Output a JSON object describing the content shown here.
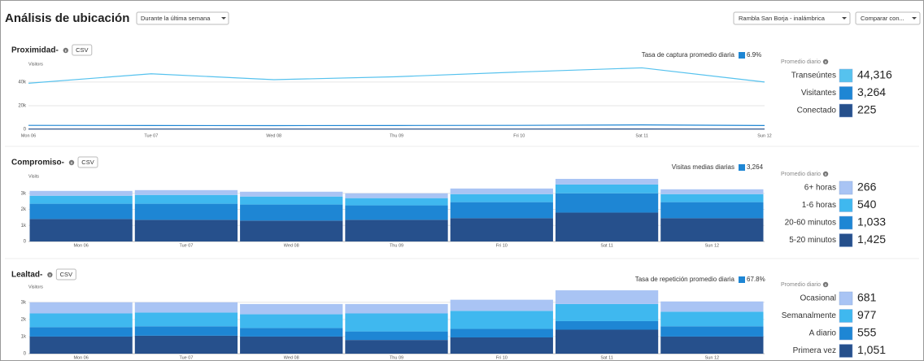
{
  "header": {
    "title": "Análisis de ubicación",
    "period": "Durante la última semana",
    "location": "Rambla San Borja - inalámbrica",
    "compare": "Comparar con..."
  },
  "chart_data": [
    {
      "type": "line",
      "title": "Proximidad-",
      "csv": "CSV",
      "metric_label": "Tasa de captura promedio diaria",
      "metric_value": "6.9%",
      "metric_color": "#1e86d4",
      "ylabel": "Visitors",
      "categories": [
        "Mon 06",
        "Tue 07",
        "Wed 08",
        "Thu 09",
        "Fri 10",
        "Sat 11",
        "Sun 12"
      ],
      "ylim": [
        0,
        53000
      ],
      "yticks": [
        0,
        {
          "value": 20000,
          "label": "20k"
        },
        {
          "value": 40000,
          "label": "40k"
        }
      ],
      "grid": true,
      "legend_title": "Promedio diario",
      "series": [
        {
          "name": "Transeúntes",
          "color": "#56c2ee",
          "average": "44,316",
          "values": [
            39000,
            47000,
            42000,
            44500,
            48500,
            52000,
            40000
          ]
        },
        {
          "name": "Visitantes",
          "color": "#1e86d4",
          "average": "3,264",
          "values": [
            3300,
            3200,
            3100,
            3200,
            3300,
            3700,
            3200
          ]
        },
        {
          "name": "Conectado",
          "color": "#26508c",
          "average": "225",
          "values": [
            230,
            220,
            210,
            220,
            230,
            250,
            220
          ]
        }
      ]
    },
    {
      "type": "stacked_bar",
      "title": "Compromiso-",
      "csv": "CSV",
      "metric_label": "Visitas medias diarias",
      "metric_value": "3,264",
      "metric_color": "#1e86d4",
      "ylabel": "Visits",
      "categories": [
        "Mon 06",
        "Tue 07",
        "Wed 08",
        "Thu 09",
        "Fri 10",
        "Sat 11",
        "Sun 12"
      ],
      "ylim": [
        0,
        3900
      ],
      "yticks": [
        0,
        {
          "value": 1000,
          "label": "1k"
        },
        {
          "value": 2000,
          "label": "2k"
        },
        {
          "value": 3000,
          "label": "3k"
        }
      ],
      "grid": true,
      "legend_title": "Promedio diario",
      "series": [
        {
          "name": "6+ horas",
          "color": "#a9c4f4",
          "average": "266",
          "values": [
            300,
            300,
            300,
            300,
            350,
            350,
            300
          ]
        },
        {
          "name": "1-6 horas",
          "color": "#3fb8ef",
          "average": "540",
          "values": [
            500,
            550,
            500,
            450,
            500,
            550,
            500
          ]
        },
        {
          "name": "20-60 minutos",
          "color": "#1e86d4",
          "average": "1,033",
          "values": [
            950,
            1000,
            1000,
            900,
            1000,
            1200,
            1000
          ]
        },
        {
          "name": "5-20 minutos",
          "color": "#26508c",
          "average": "1,425",
          "values": [
            1400,
            1350,
            1300,
            1350,
            1450,
            1800,
            1450
          ]
        }
      ]
    },
    {
      "type": "stacked_bar",
      "title": "Lealtad-",
      "csv": "CSV",
      "metric_label": "Tasa de repetición promedio diaria",
      "metric_value": "67.8%",
      "metric_color": "#1e86d4",
      "ylabel": "Visitors",
      "categories": [
        "Mon 06",
        "Tue 07",
        "Wed 08",
        "Thu 09",
        "Fri 10",
        "Sat 11",
        "Sun 12"
      ],
      "ylim": [
        0,
        3750
      ],
      "yticks": [
        0,
        {
          "value": 1000,
          "label": "1k"
        },
        {
          "value": 2000,
          "label": "2k"
        },
        {
          "value": 3000,
          "label": "3k"
        }
      ],
      "grid": true,
      "legend_title": "Promedio diario",
      "series": [
        {
          "name": "Ocasional",
          "color": "#a9c4f4",
          "average": "681",
          "values": [
            650,
            600,
            600,
            550,
            650,
            800,
            600
          ]
        },
        {
          "name": "Semanalmente",
          "color": "#3fb8ef",
          "average": "977",
          "values": [
            800,
            800,
            800,
            1050,
            1050,
            1000,
            850
          ]
        },
        {
          "name": "A diario",
          "color": "#1e86d4",
          "average": "555",
          "values": [
            550,
            550,
            500,
            500,
            500,
            500,
            600
          ]
        },
        {
          "name": "Primera vez",
          "color": "#26508c",
          "average": "1,051",
          "values": [
            1000,
            1050,
            1000,
            800,
            950,
            1400,
            1000
          ]
        }
      ]
    }
  ]
}
